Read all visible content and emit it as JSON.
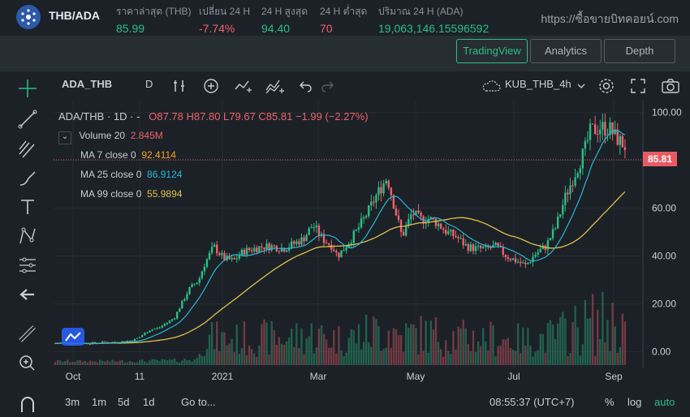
{
  "header": {
    "pair": "THB/ADA",
    "last_price_label": "ราคาล่าสุด (THB)",
    "last_price": "85.99",
    "change_label": "เปลี่ยน 24 H",
    "change": "-7.74%",
    "high_label": "24 H สูงสุด",
    "high": "94.40",
    "low_label": "24 H ต่ำสุด",
    "low": "70",
    "volume_label": "ปริมาณ 24 H (ADA)",
    "volume": "19,063,146.15596592",
    "site": "https://ซื้อขายบิทคอยน์.com"
  },
  "tabs": [
    "TradingView",
    "Analytics",
    "Depth"
  ],
  "chart_toolbar": {
    "symbol": "ADA_THB",
    "interval": "D",
    "layout_name": "KUB_THB_4h"
  },
  "legend": {
    "title": "ADA/THB · 1D · -",
    "ohlc": "O87.78 H87.80 L79.67 C85.81 −1.99 (−2.27%)",
    "volume_label": "Volume 20",
    "volume_value": "2.845M",
    "ma7_label": "MA 7 close 0",
    "ma7_value": "92.4114",
    "ma25_label": "MA 25 close 0",
    "ma25_value": "86.9124",
    "ma99_label": "MA 99 close 0",
    "ma99_value": "55.9894"
  },
  "colors": {
    "up": "#2ebd85",
    "down": "#f0616d",
    "ma7": "#f5a623",
    "ma25": "#29b6d6",
    "ma99": "#e0c04a",
    "price_tag": "#e85a63"
  },
  "chart_data": {
    "type": "candlestick",
    "ylim": [
      -7,
      105
    ],
    "y_ticks": [
      "100.00",
      "80.00",
      "60.00",
      "40.00",
      "20.00",
      "0.00"
    ],
    "x_ticks": [
      "Oct",
      "11",
      "2021",
      "Mar",
      "May",
      "Jul",
      "Sep"
    ],
    "current_price": "85.81",
    "series": [
      {
        "name": "ADA/THB",
        "close_path": [
          [
            0,
            3.5
          ],
          [
            4,
            3.5
          ],
          [
            8,
            3.5
          ],
          [
            10,
            4
          ],
          [
            13,
            4
          ],
          [
            16,
            5
          ],
          [
            17,
            6
          ],
          [
            19,
            9
          ],
          [
            21,
            10
          ],
          [
            24,
            14
          ],
          [
            25,
            18
          ],
          [
            27,
            26
          ],
          [
            29,
            30
          ],
          [
            30,
            36
          ],
          [
            32,
            44
          ],
          [
            34,
            39
          ],
          [
            36,
            38
          ],
          [
            38,
            42
          ],
          [
            40,
            43
          ],
          [
            42,
            44
          ],
          [
            44,
            44
          ],
          [
            46,
            43
          ],
          [
            48,
            45
          ],
          [
            50,
            47
          ],
          [
            52,
            53
          ],
          [
            54,
            47
          ],
          [
            56,
            44
          ],
          [
            57,
            40
          ],
          [
            59,
            45
          ],
          [
            61,
            51
          ],
          [
            63,
            58
          ],
          [
            65,
            66
          ],
          [
            67,
            73
          ],
          [
            69,
            56
          ],
          [
            70,
            48
          ],
          [
            72,
            58
          ],
          [
            74,
            55
          ],
          [
            75,
            56
          ],
          [
            77,
            54
          ],
          [
            79,
            50
          ],
          [
            81,
            48
          ],
          [
            83,
            44
          ],
          [
            85,
            43
          ],
          [
            87,
            43
          ],
          [
            89,
            44
          ],
          [
            91,
            40
          ],
          [
            93,
            38
          ],
          [
            95,
            36
          ],
          [
            97,
            41
          ],
          [
            99,
            44
          ],
          [
            101,
            52
          ],
          [
            103,
            65
          ],
          [
            105,
            75
          ],
          [
            107,
            85
          ],
          [
            108,
            92
          ],
          [
            110,
            94
          ],
          [
            112,
            93
          ],
          [
            113,
            90
          ],
          [
            115,
            85.81
          ]
        ]
      },
      {
        "name": "MA 7 close 0",
        "value": "92.4114"
      },
      {
        "name": "MA 25 close 0",
        "value": "86.9124"
      },
      {
        "name": "MA 99 close 0",
        "value": "55.9894"
      }
    ]
  },
  "bottom": {
    "ranges": [
      "3m",
      "1m",
      "5d",
      "1d"
    ],
    "goto": "Go to...",
    "clock": "08:55:37 (UTC+7)",
    "pct": "%",
    "log": "log",
    "auto": "auto"
  }
}
